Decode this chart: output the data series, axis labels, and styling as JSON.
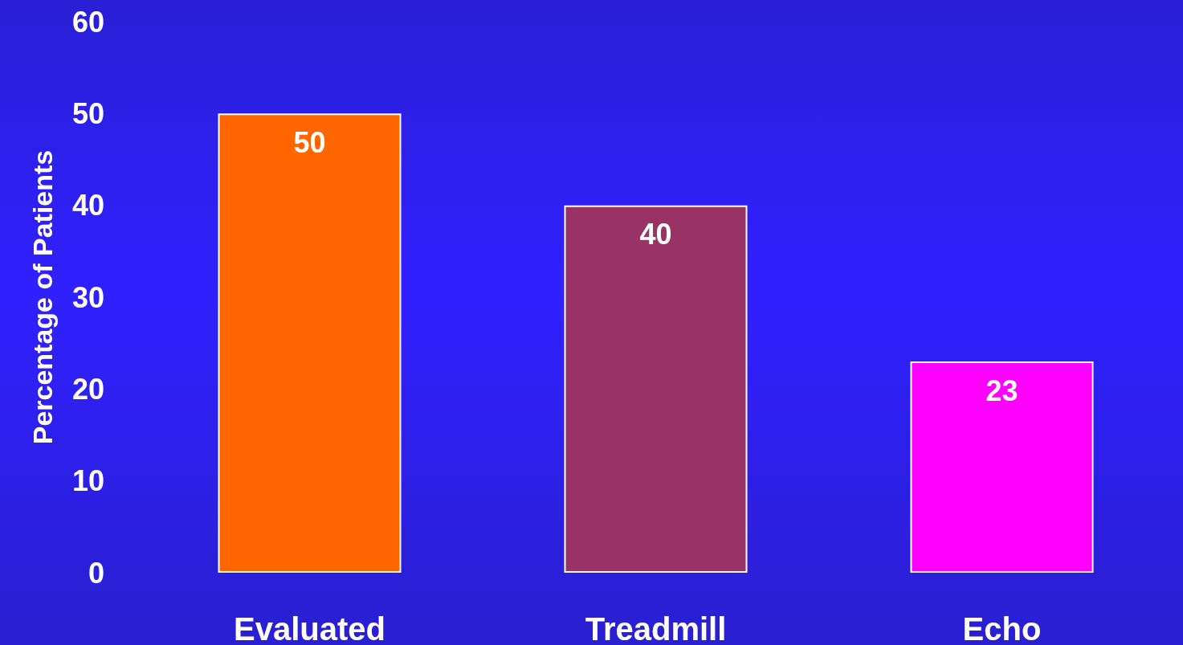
{
  "chart_data": {
    "type": "bar",
    "ylabel": "Percentage of Patients",
    "categories": [
      "Evaluated",
      "Treadmill",
      "Echo"
    ],
    "values": [
      50,
      40,
      23
    ],
    "colors": [
      "#ff6600",
      "#993366",
      "#ff00ff"
    ],
    "ylim": [
      0,
      60
    ],
    "yticks": [
      0,
      10,
      20,
      30,
      40,
      50,
      60
    ],
    "grid": false,
    "data_labels": true
  }
}
